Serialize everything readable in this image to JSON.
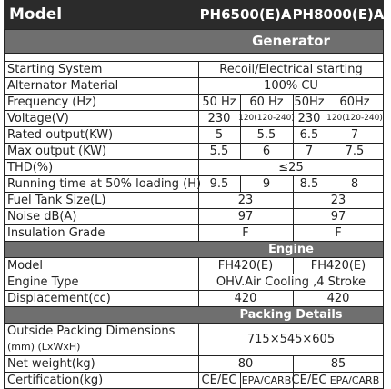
{
  "header": {
    "label": "Model",
    "models": [
      "PH6500(E)A",
      "PH8000(E)A"
    ]
  },
  "sections": [
    {
      "title": "Generator",
      "rows": [
        {
          "label": "Starting System",
          "cells": [
            "Recoil/Electrical starting"
          ]
        },
        {
          "label": "Alternator Material",
          "cells": [
            "100% CU"
          ]
        },
        {
          "label": "Frequency (Hz)",
          "cells": [
            "50 Hz",
            "60 Hz",
            "50Hz",
            "60Hz"
          ]
        },
        {
          "label": "Voltage(V)",
          "cells": [
            "230",
            "120(120-240)",
            "230",
            "120(120-240)"
          ]
        },
        {
          "label": "Rated output(KW)",
          "cells": [
            "5",
            "5.5",
            "6.5",
            "7"
          ]
        },
        {
          "label": "Max output (KW)",
          "cells": [
            "5.5",
            "6",
            "7",
            "7.5"
          ]
        },
        {
          "label": "THD(%)",
          "cells": [
            "≤25"
          ]
        },
        {
          "label": "Running time at 50% loading (H)",
          "cells": [
            "9.5",
            "9",
            "8.5",
            "8"
          ]
        },
        {
          "label": "Fuel Tank Size(L)",
          "cells": [
            "23",
            "23"
          ]
        },
        {
          "label": "Noise dB(A)",
          "cells": [
            "97",
            "97"
          ]
        },
        {
          "label": "Insulation Grade",
          "cells": [
            "F",
            "F"
          ]
        }
      ]
    },
    {
      "title": "Engine",
      "rows": [
        {
          "label": "Model",
          "cells": [
            "FH420(E)",
            "FH420(E)"
          ]
        },
        {
          "label": "Engine Type",
          "cells": [
            "OHV.Air Cooling ,4 Stroke"
          ]
        },
        {
          "label": "Displacement(cc)",
          "cells": [
            "420",
            "420"
          ]
        }
      ]
    },
    {
      "title": "Packing Details",
      "rows": [
        {
          "label": [
            "Outside Packing Dimensions",
            "(mm) (LxWxH)"
          ],
          "cells": [
            "715×545×605"
          ]
        },
        {
          "label": "Net weight(kg)",
          "cells": [
            "80",
            "85"
          ]
        },
        {
          "label": "Certification(kg)",
          "cells": [
            "CE/EC",
            "EPA/CARB",
            "CE/EC",
            "EPA/CARB"
          ]
        }
      ]
    }
  ]
}
